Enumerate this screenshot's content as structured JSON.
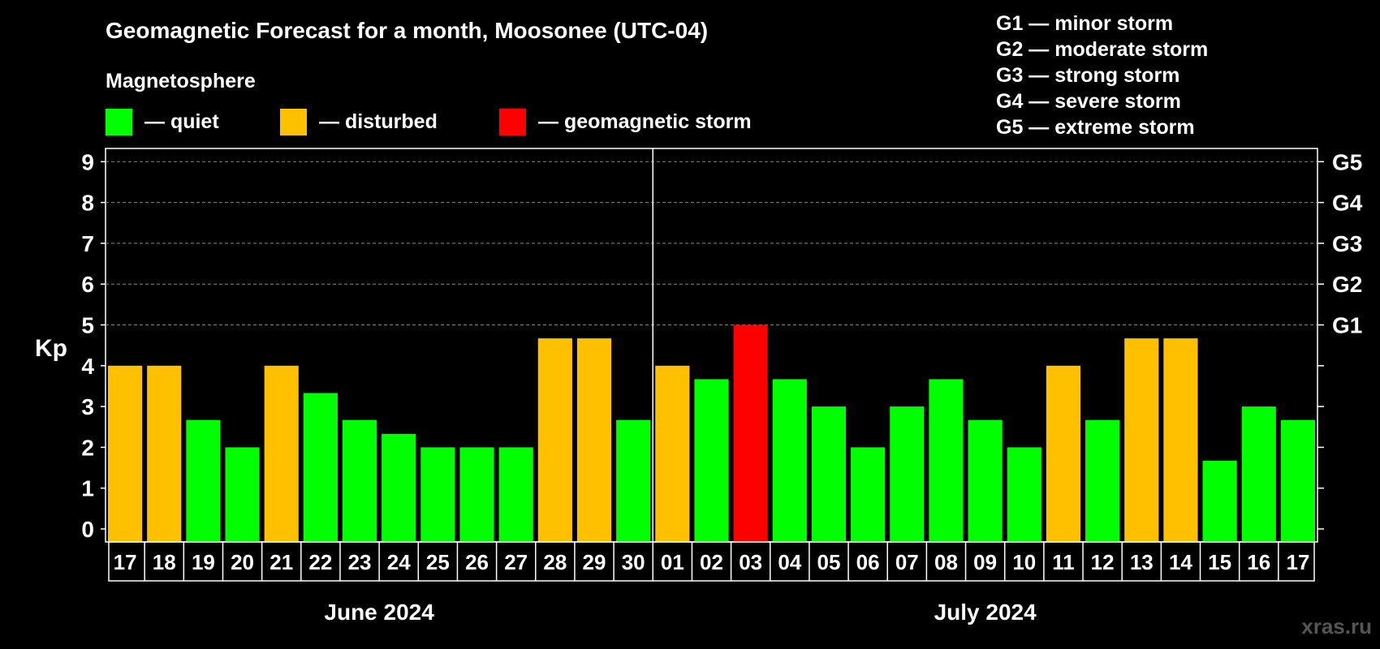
{
  "chart_data": {
    "type": "bar",
    "title": "Geomagnetic Forecast for a month, Moosonee (UTC-04)",
    "legend": {
      "heading": "Magnetosphere",
      "items": [
        {
          "label": "— quiet",
          "color": "#00ff00"
        },
        {
          "label": "— disturbed",
          "color": "#ffc000"
        },
        {
          "label": "— geomagnetic storm",
          "color": "#ff0000"
        }
      ]
    },
    "storm_scale": [
      "G1 — minor storm",
      "G2 — moderate storm",
      "G3 — strong storm",
      "G4 — severe storm",
      "G5 — extreme storm"
    ],
    "ylabel": "Kp",
    "ylim": [
      0,
      9
    ],
    "yticks": [
      "0",
      "1",
      "2",
      "3",
      "4",
      "5",
      "6",
      "7",
      "8",
      "9"
    ],
    "right_ticks": [
      {
        "value": 5,
        "label": "G1"
      },
      {
        "value": 6,
        "label": "G2"
      },
      {
        "value": 7,
        "label": "G3"
      },
      {
        "value": 8,
        "label": "G4"
      },
      {
        "value": 9,
        "label": "G5"
      }
    ],
    "grid": "dashed horizontal at Kp 5–9",
    "categories": [
      "17",
      "18",
      "19",
      "20",
      "21",
      "22",
      "23",
      "24",
      "25",
      "26",
      "27",
      "28",
      "29",
      "30",
      "01",
      "02",
      "03",
      "04",
      "05",
      "06",
      "07",
      "08",
      "09",
      "10",
      "11",
      "12",
      "13",
      "14",
      "15",
      "16",
      "17"
    ],
    "values": [
      4,
      4,
      2.67,
      2,
      4,
      3.33,
      2.67,
      2.33,
      2,
      2,
      2,
      4.67,
      4.67,
      2.67,
      4,
      3.67,
      5,
      3.67,
      3,
      2,
      3,
      3.67,
      2.67,
      2,
      4,
      2.67,
      4.67,
      4.67,
      1.67,
      3,
      2.67
    ],
    "status": [
      "disturbed",
      "disturbed",
      "quiet",
      "quiet",
      "disturbed",
      "quiet",
      "quiet",
      "quiet",
      "quiet",
      "quiet",
      "quiet",
      "disturbed",
      "disturbed",
      "quiet",
      "disturbed",
      "quiet",
      "storm",
      "quiet",
      "quiet",
      "quiet",
      "quiet",
      "quiet",
      "quiet",
      "quiet",
      "disturbed",
      "quiet",
      "disturbed",
      "disturbed",
      "quiet",
      "quiet",
      "quiet"
    ],
    "colors": {
      "quiet": "#00ff00",
      "disturbed": "#ffc000",
      "storm": "#ff0000"
    },
    "months": [
      {
        "label": "June 2024",
        "start": 0,
        "end": 13
      },
      {
        "label": "July 2024",
        "start": 14,
        "end": 30
      }
    ]
  },
  "watermark": "xras.ru"
}
